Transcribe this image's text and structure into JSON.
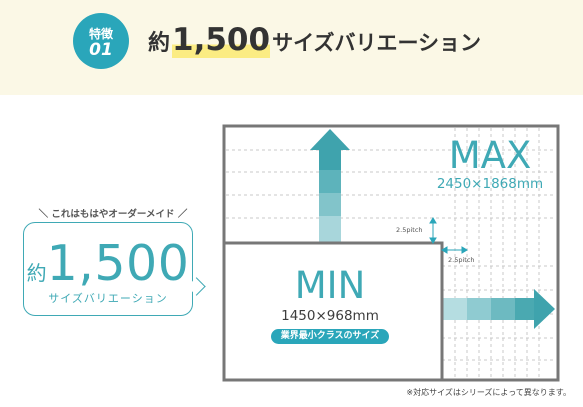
{
  "header": {
    "badge_label": "特徴",
    "badge_number": "01",
    "title_prefix": "約",
    "title_number": "1,500",
    "title_suffix": "サイズバリエーション"
  },
  "bubble": {
    "tagline": "＼ これはもはやオーダーメイド ／",
    "prefix": "約",
    "number": "1,500",
    "subtitle": "サイズバリエーション"
  },
  "diagram": {
    "max_title": "MAX",
    "max_size": "2450×1868mm",
    "min_title": "MIN",
    "min_size": "1450×968mm",
    "min_badge": "業界最小クラスのサイズ",
    "pitch_vertical": "2.5pitch",
    "pitch_horizontal": "2.5pitch"
  },
  "colors": {
    "accent": "#2aa6ba",
    "frame": "#777777",
    "header_bg": "#fbf8e6",
    "highlight": "#fbec83"
  },
  "footnote": "※対応サイズはシリーズによって異なります。"
}
